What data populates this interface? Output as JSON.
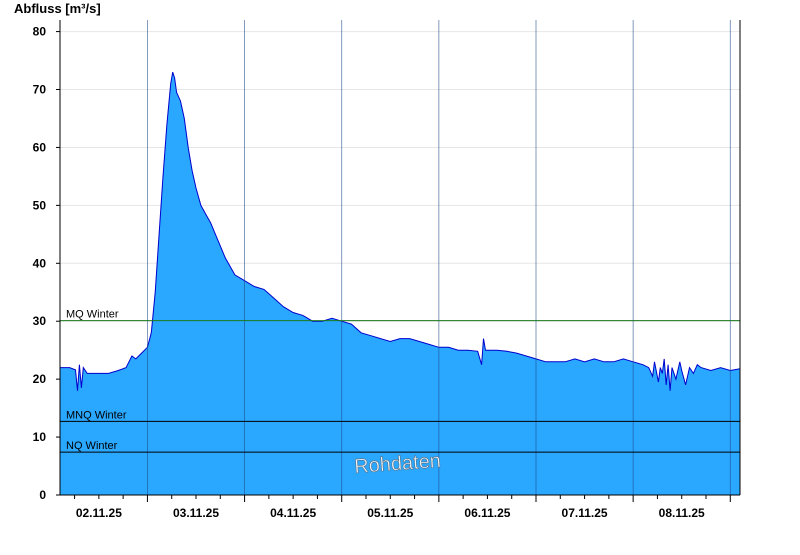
{
  "chart_data": {
    "type": "area",
    "ylabel": "Abfluss [m³/s]",
    "ylim": [
      0,
      82
    ],
    "yticks": [
      0,
      10,
      20,
      30,
      40,
      50,
      60,
      70,
      80
    ],
    "xlim": [
      1.6,
      8.6
    ],
    "xticks": [
      {
        "pos": 2.0,
        "label": "02.11.25"
      },
      {
        "pos": 3.0,
        "label": "03.11.25"
      },
      {
        "pos": 4.0,
        "label": "04.11.25"
      },
      {
        "pos": 5.0,
        "label": "05.11.25"
      },
      {
        "pos": 6.0,
        "label": "06.11.25"
      },
      {
        "pos": 7.0,
        "label": "07.11.25"
      },
      {
        "pos": 8.0,
        "label": "08.11.25"
      }
    ],
    "grid": true,
    "series": [
      {
        "values": [
          [
            1.6,
            22.0
          ],
          [
            1.7,
            22.0
          ],
          [
            1.76,
            21.6
          ],
          [
            1.78,
            18.0
          ],
          [
            1.8,
            22.5
          ],
          [
            1.82,
            18.5
          ],
          [
            1.84,
            22.0
          ],
          [
            1.88,
            21.0
          ],
          [
            2.0,
            21.0
          ],
          [
            2.1,
            21.0
          ],
          [
            2.2,
            21.5
          ],
          [
            2.28,
            22.0
          ],
          [
            2.34,
            24.0
          ],
          [
            2.38,
            23.5
          ],
          [
            2.44,
            24.5
          ],
          [
            2.5,
            25.5
          ],
          [
            2.54,
            28.0
          ],
          [
            2.58,
            35.0
          ],
          [
            2.62,
            45.0
          ],
          [
            2.66,
            55.0
          ],
          [
            2.7,
            64.0
          ],
          [
            2.74,
            71.0
          ],
          [
            2.76,
            73.0
          ],
          [
            2.78,
            72.0
          ],
          [
            2.8,
            69.5
          ],
          [
            2.84,
            68.0
          ],
          [
            2.88,
            65.0
          ],
          [
            2.92,
            60.0
          ],
          [
            2.96,
            56.0
          ],
          [
            3.0,
            53.0
          ],
          [
            3.05,
            50.0
          ],
          [
            3.1,
            48.5
          ],
          [
            3.15,
            47.0
          ],
          [
            3.2,
            45.0
          ],
          [
            3.25,
            43.0
          ],
          [
            3.3,
            41.0
          ],
          [
            3.35,
            39.5
          ],
          [
            3.4,
            38.0
          ],
          [
            3.5,
            37.0
          ],
          [
            3.6,
            36.0
          ],
          [
            3.7,
            35.5
          ],
          [
            3.8,
            34.0
          ],
          [
            3.9,
            32.5
          ],
          [
            4.0,
            31.5
          ],
          [
            4.1,
            31.0
          ],
          [
            4.2,
            30.0
          ],
          [
            4.3,
            30.0
          ],
          [
            4.4,
            30.5
          ],
          [
            4.5,
            30.0
          ],
          [
            4.6,
            29.5
          ],
          [
            4.7,
            28.0
          ],
          [
            4.8,
            27.5
          ],
          [
            4.9,
            27.0
          ],
          [
            5.0,
            26.5
          ],
          [
            5.1,
            27.0
          ],
          [
            5.2,
            27.0
          ],
          [
            5.3,
            26.5
          ],
          [
            5.4,
            26.0
          ],
          [
            5.5,
            25.5
          ],
          [
            5.6,
            25.5
          ],
          [
            5.7,
            25.0
          ],
          [
            5.8,
            25.0
          ],
          [
            5.9,
            24.8
          ],
          [
            5.94,
            22.5
          ],
          [
            5.96,
            27.0
          ],
          [
            5.98,
            25.0
          ],
          [
            6.1,
            25.0
          ],
          [
            6.2,
            24.8
          ],
          [
            6.3,
            24.5
          ],
          [
            6.4,
            24.0
          ],
          [
            6.5,
            23.5
          ],
          [
            6.6,
            23.0
          ],
          [
            6.7,
            23.0
          ],
          [
            6.8,
            23.0
          ],
          [
            6.9,
            23.5
          ],
          [
            7.0,
            23.0
          ],
          [
            7.1,
            23.5
          ],
          [
            7.2,
            23.0
          ],
          [
            7.3,
            23.0
          ],
          [
            7.4,
            23.5
          ],
          [
            7.5,
            23.0
          ],
          [
            7.6,
            22.5
          ],
          [
            7.66,
            22.0
          ],
          [
            7.7,
            20.5
          ],
          [
            7.72,
            23.0
          ],
          [
            7.76,
            19.5
          ],
          [
            7.78,
            22.0
          ],
          [
            7.8,
            21.0
          ],
          [
            7.82,
            23.5
          ],
          [
            7.84,
            19.0
          ],
          [
            7.86,
            22.5
          ],
          [
            7.88,
            18.0
          ],
          [
            7.9,
            22.0
          ],
          [
            7.94,
            20.0
          ],
          [
            7.98,
            23.0
          ],
          [
            8.0,
            21.5
          ],
          [
            8.04,
            19.0
          ],
          [
            8.08,
            22.0
          ],
          [
            8.12,
            21.0
          ],
          [
            8.16,
            22.5
          ],
          [
            8.2,
            22.0
          ],
          [
            8.3,
            21.5
          ],
          [
            8.4,
            22.0
          ],
          [
            8.5,
            21.5
          ],
          [
            8.6,
            21.8
          ]
        ],
        "fill": "#2aa7ff",
        "line": "#0000cc"
      }
    ],
    "reference_lines": [
      {
        "label": "MQ Winter",
        "value": 30.1,
        "color": "#1a7a1a"
      },
      {
        "label": "MNQ Winter",
        "value": 12.7,
        "color": "#000000"
      },
      {
        "label": "NQ Winter",
        "value": 7.4,
        "color": "#000000"
      }
    ],
    "watermark": "Rohdaten"
  }
}
